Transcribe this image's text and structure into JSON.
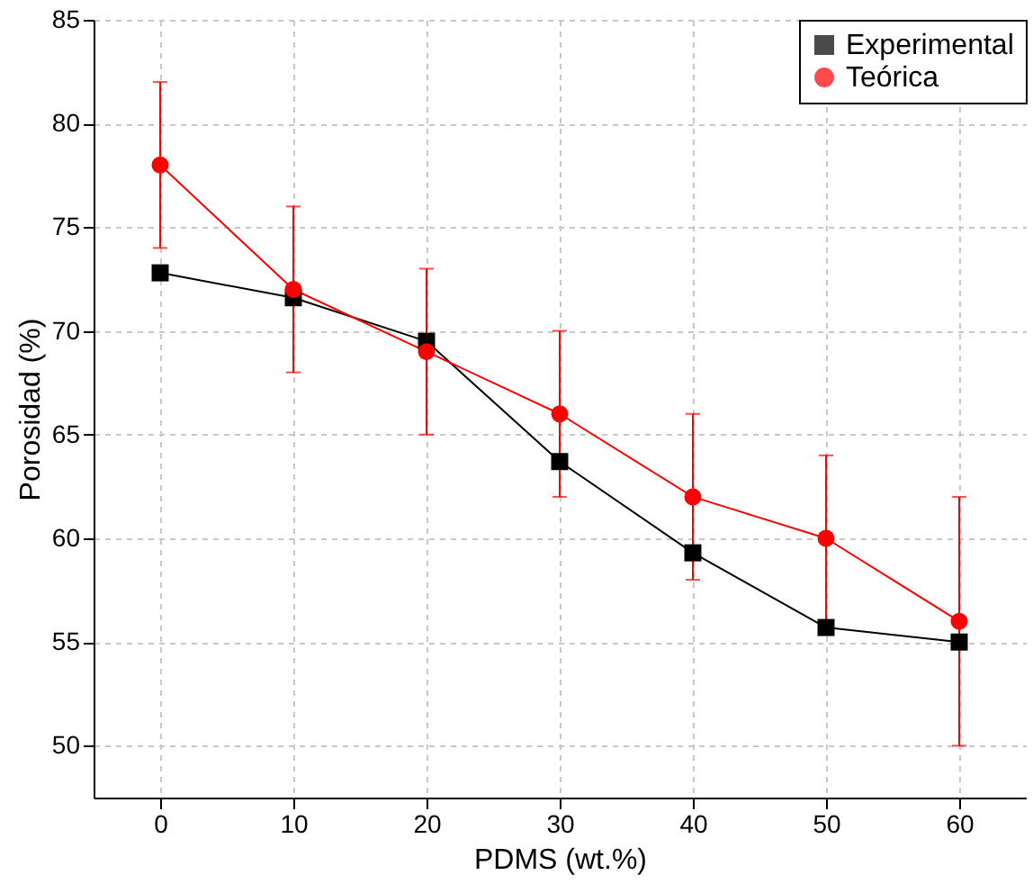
{
  "chart_data": {
    "type": "line",
    "xlabel": "PDMS (wt.%)",
    "ylabel": "Porosidad (%)",
    "x": [
      0,
      10,
      20,
      30,
      40,
      50,
      60
    ],
    "series": [
      {
        "name": "Experimental",
        "color": "#000000",
        "marker": "square",
        "values": [
          72.8,
          71.6,
          69.5,
          63.7,
          59.3,
          55.7,
          55.0
        ]
      },
      {
        "name": "Teórica",
        "color": "#ff0000",
        "marker": "circle",
        "values": [
          78,
          72,
          69,
          66,
          62,
          60,
          56
        ],
        "errors": [
          4,
          4,
          4,
          4,
          4,
          4,
          6
        ]
      }
    ],
    "xlim": [
      -5,
      65
    ],
    "xticks": [
      0,
      10,
      20,
      30,
      40,
      50,
      60
    ],
    "ylim": [
      47.5,
      85
    ],
    "yticks": [
      50,
      55,
      60,
      65,
      70,
      75,
      80,
      85
    ],
    "grid": true,
    "legend": "top right",
    "line_style": "solid"
  }
}
